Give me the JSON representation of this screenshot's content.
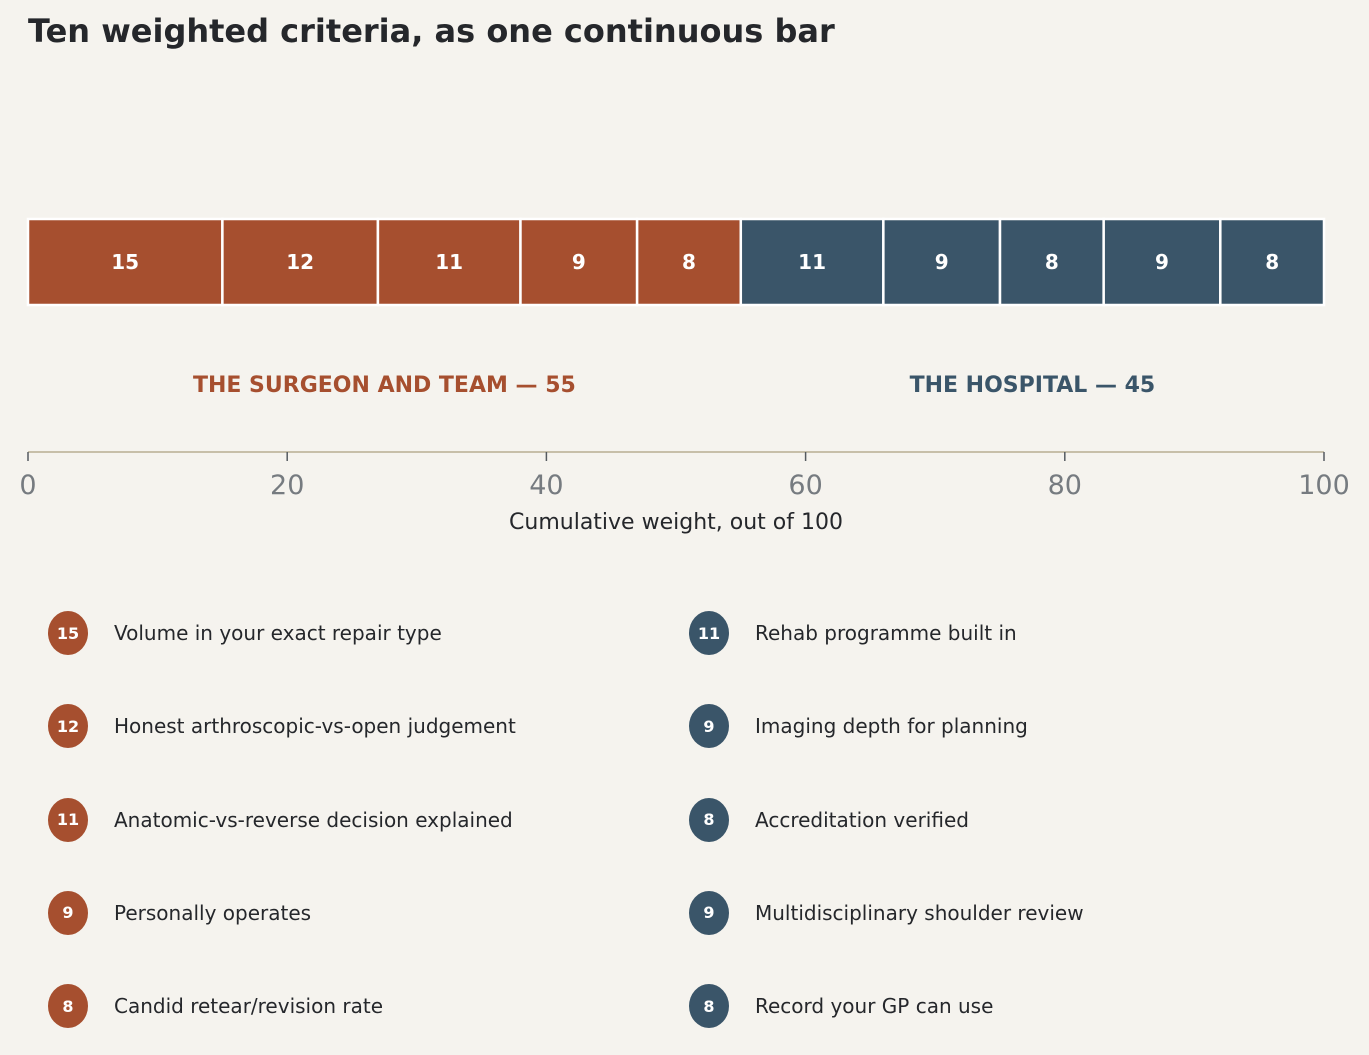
{
  "chart_data": {
    "type": "bar",
    "title": "Ten weighted criteria, as one continuous bar",
    "xlabel": "Cumulative weight, out of 100",
    "xlim": [
      0,
      100
    ],
    "xticks": [
      "0",
      "20",
      "40",
      "60",
      "80",
      "100"
    ],
    "groups": [
      {
        "label": "THE SURGEON AND TEAM — 55",
        "color": "#a64f2f",
        "segments": [
          {
            "value": 15,
            "label": "Volume in your exact repair type"
          },
          {
            "value": 12,
            "label": "Honest arthroscopic-vs-open judgement"
          },
          {
            "value": 11,
            "label": "Anatomic-vs-reverse decision explained"
          },
          {
            "value": 9,
            "label": "Personally operates"
          },
          {
            "value": 8,
            "label": "Candid retear/revision rate"
          }
        ]
      },
      {
        "label": "THE HOSPITAL — 45",
        "color": "#3a5569",
        "segments": [
          {
            "value": 11,
            "label": "Rehab programme built in"
          },
          {
            "value": 9,
            "label": "Imaging depth for planning"
          },
          {
            "value": 8,
            "label": "Accreditation verified"
          },
          {
            "value": 9,
            "label": "Multidisciplinary shoulder review"
          },
          {
            "value": 8,
            "label": "Record your GP can use"
          }
        ]
      }
    ]
  },
  "colors": {
    "background": "#f5f3ee",
    "axis": "#c7bfa9",
    "tick_text": "#767b80",
    "text": "#25272b"
  }
}
